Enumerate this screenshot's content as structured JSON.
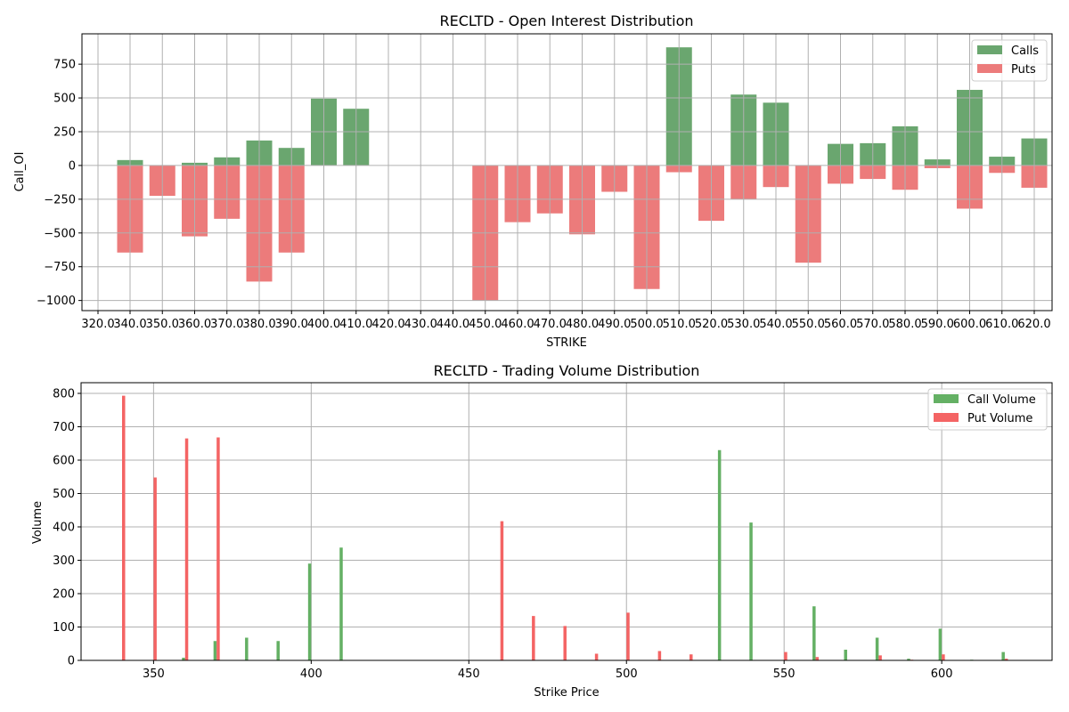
{
  "chart_data": [
    {
      "type": "bar",
      "title": "RECLTD - Open Interest Distribution",
      "xlabel": "STRIKE",
      "ylabel": "Call_OI",
      "categories": [
        "320.0",
        "340.0",
        "350.0",
        "360.0",
        "370.0",
        "380.0",
        "390.0",
        "400.0",
        "410.0",
        "420.0",
        "430.0",
        "440.0",
        "450.0",
        "460.0",
        "470.0",
        "480.0",
        "490.0",
        "500.0",
        "510.0",
        "520.0",
        "530.0",
        "540.0",
        "550.0",
        "560.0",
        "570.0",
        "580.0",
        "590.0",
        "600.0",
        "610.0",
        "620.0"
      ],
      "ylim": [
        -1075,
        975
      ],
      "yticks": [
        -1000,
        -750,
        -500,
        -250,
        0,
        250,
        500,
        750
      ],
      "ytick_labels": [
        "−1000",
        "−750",
        "−500",
        "−250",
        "0",
        "250",
        "500",
        "750"
      ],
      "grid": true,
      "legend": "top-right",
      "series": [
        {
          "name": "Calls",
          "color": "#6aa66f",
          "values": [
            null,
            40,
            null,
            20,
            60,
            185,
            130,
            495,
            420,
            null,
            null,
            null,
            null,
            null,
            null,
            null,
            null,
            null,
            875,
            null,
            525,
            465,
            null,
            160,
            165,
            290,
            45,
            560,
            65,
            200
          ]
        },
        {
          "name": "Puts",
          "color": "#ec7b7b",
          "values": [
            null,
            -645,
            -225,
            -525,
            -395,
            -860,
            -645,
            null,
            null,
            null,
            null,
            null,
            -1000,
            -420,
            -355,
            -510,
            -195,
            -915,
            -50,
            -410,
            -250,
            -160,
            -720,
            -135,
            -100,
            -180,
            -20,
            -320,
            -55,
            -165
          ]
        }
      ]
    },
    {
      "type": "bar",
      "title": "RECLTD - Trading Volume Distribution",
      "xlabel": "Strike Price",
      "ylabel": "Volume",
      "xlim": [
        327,
        635
      ],
      "ylim": [
        0,
        832
      ],
      "xticks": [
        350,
        400,
        450,
        500,
        550,
        600
      ],
      "yticks": [
        0,
        100,
        200,
        300,
        400,
        500,
        600,
        700,
        800
      ],
      "grid": true,
      "legend": "top-right",
      "series": [
        {
          "name": "Call Volume",
          "color": "#64b064",
          "x": [
            340,
            350,
            360,
            370,
            380,
            390,
            400,
            410,
            460,
            470,
            480,
            490,
            500,
            510,
            520,
            530,
            540,
            550,
            560,
            570,
            580,
            590,
            600,
            610,
            620
          ],
          "values": [
            0,
            0,
            8,
            58,
            68,
            58,
            290,
            338,
            0,
            0,
            0,
            0,
            0,
            0,
            0,
            630,
            413,
            0,
            162,
            32,
            68,
            5,
            95,
            2,
            25
          ]
        },
        {
          "name": "Put Volume",
          "color": "#f46464",
          "x": [
            340,
            350,
            360,
            370,
            380,
            390,
            400,
            410,
            460,
            470,
            480,
            490,
            500,
            510,
            520,
            530,
            540,
            550,
            560,
            570,
            580,
            590,
            600,
            610,
            620
          ],
          "values": [
            793,
            548,
            665,
            668,
            0,
            0,
            0,
            0,
            417,
            133,
            103,
            20,
            143,
            28,
            18,
            0,
            0,
            25,
            10,
            0,
            15,
            2,
            18,
            0,
            5
          ]
        }
      ]
    }
  ]
}
